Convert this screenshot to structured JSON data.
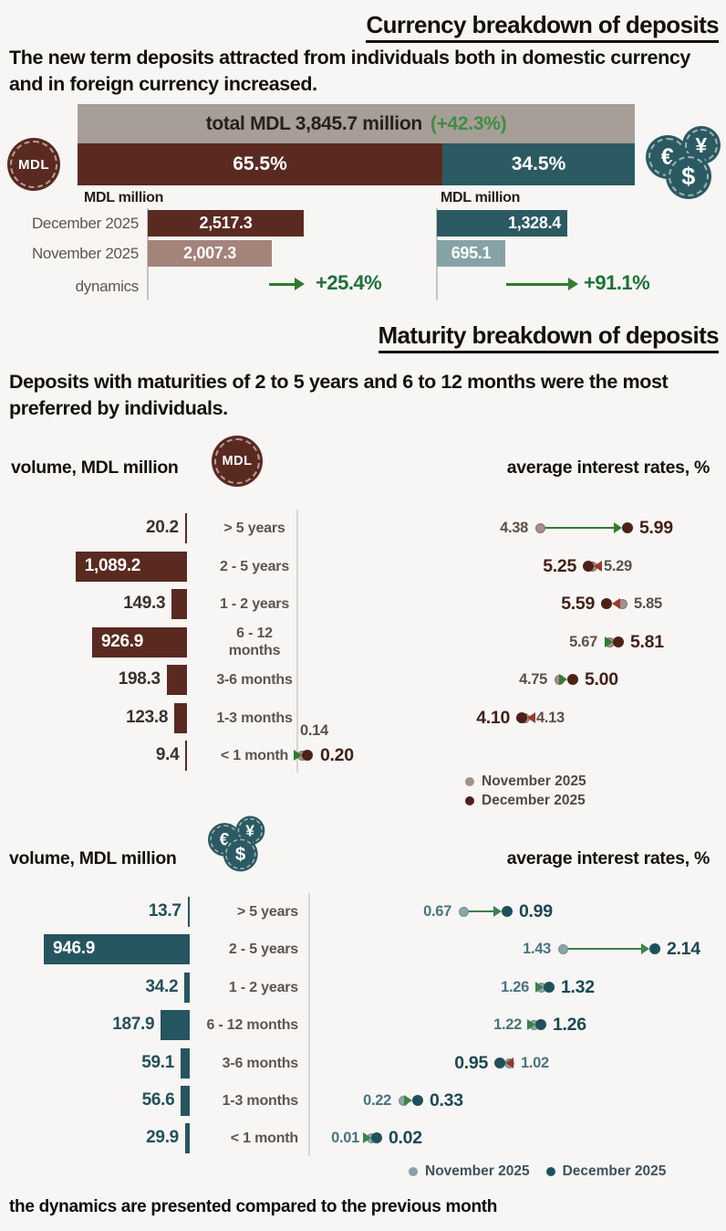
{
  "currency_section": {
    "title": "Currency breakdown of deposits",
    "intro": "The new term deposits attracted from individuals both in domestic currency and in foreign currency increased.",
    "total_label": "total MDL 3,845.7 million",
    "total_change": "(+42.3%)",
    "mdl_share": "65.5%",
    "fx_share": "34.5%",
    "mdl_coin": "MDL",
    "fx_symbols": {
      "eur": "€",
      "yen": "¥",
      "usd": "$"
    }
  },
  "maturity_section": {
    "title": "Maturity breakdown of deposits",
    "intro": "Deposits with maturities of 2 to 5 years and 6 to 12 months were the most preferred by individuals.",
    "mdl_volume_header": "volume, MDL million",
    "mdl_rates_header": "average interest rates, %",
    "fx_volume_header": "volume, MDL million",
    "fx_rates_header": "average interest rates, %"
  },
  "legend": {
    "november": "November 2025",
    "december": "December 2025"
  },
  "footer_note": "the dynamics are presented compared to the previous month",
  "colors": {
    "maroon": "#5a2a21",
    "maroon_light": "#a4837b",
    "teal": "#2b5a62",
    "teal_light": "#85a3a6",
    "gray_bar": "#a69e97",
    "green_arrow": "#2e7d32",
    "green_text": "#1e7038",
    "red_arrow": "#9c3a28"
  },
  "chart_data": [
    {
      "id": "currency-mdl-mini",
      "type": "bar",
      "title": "MDL million",
      "categories": [
        "December 2025",
        "November 2025"
      ],
      "values": [
        2517.3,
        2007.3
      ],
      "value_labels": [
        "2,517.3",
        "2,007.3"
      ],
      "dynamics_label": "dynamics",
      "dynamics": "+25.4%"
    },
    {
      "id": "currency-fx-mini",
      "type": "bar",
      "title": "MDL million",
      "categories": [
        "December 2025",
        "November 2025"
      ],
      "values": [
        1328.4,
        695.1
      ],
      "value_labels": [
        "1,328.4",
        "695.1"
      ],
      "dynamics_label": "",
      "dynamics": "+91.1%"
    },
    {
      "id": "maturity-mdl",
      "type": "bar+dumbbell",
      "currency": "MDL",
      "title": "volume, MDL million",
      "rates_title": "average interest rates, %",
      "categories": [
        "> 5 years",
        "2 - 5 years",
        "1 - 2 years",
        "6 - 12\nmonths",
        "3-6 months",
        "1-3 months",
        "< 1 month"
      ],
      "volumes": [
        20.2,
        1089.2,
        149.3,
        926.9,
        198.3,
        123.8,
        9.4
      ],
      "volume_labels": [
        "20.2",
        "1,089.2",
        "149.3",
        "926.9",
        "198.3",
        "123.8",
        "9.4"
      ],
      "rates_november": [
        4.38,
        5.29,
        5.85,
        5.67,
        4.75,
        4.13,
        0.14
      ],
      "rates_december": [
        5.99,
        5.25,
        5.59,
        5.81,
        5.0,
        4.1,
        0.2
      ],
      "rate_labels_november": [
        "4.38",
        "5.29",
        "5.85",
        "5.67",
        "4.75",
        "4.13",
        "0.14"
      ],
      "rate_labels_december": [
        "5.99",
        "5.25",
        "5.59",
        "5.81",
        "5.00",
        "4.10",
        "0.20"
      ],
      "legend": [
        "November 2025",
        "December 2025"
      ],
      "legend_position": "below-stacked"
    },
    {
      "id": "maturity-fx",
      "type": "bar+dumbbell",
      "currency": "foreign currency",
      "title": "volume, MDL million",
      "rates_title": "average interest rates, %",
      "categories": [
        "> 5 years",
        "2 - 5 years",
        "1 - 2 years",
        "6 - 12 months",
        "3-6 months",
        "1-3 months",
        "< 1 month"
      ],
      "volumes": [
        13.7,
        946.9,
        34.2,
        187.9,
        59.1,
        56.6,
        29.9
      ],
      "volume_labels": [
        "13.7",
        "946.9",
        "34.2",
        "187.9",
        "59.1",
        "56.6",
        "29.9"
      ],
      "rates_november": [
        0.67,
        1.43,
        1.26,
        1.22,
        1.02,
        0.22,
        0.01
      ],
      "rates_december": [
        0.99,
        2.14,
        1.32,
        1.26,
        0.95,
        0.33,
        0.02
      ],
      "rate_labels_november": [
        "0.67",
        "1.43",
        "1.26",
        "1.22",
        "1.02",
        "0.22",
        "0.01"
      ],
      "rate_labels_december": [
        "0.99",
        "2.14",
        "1.32",
        "1.26",
        "0.95",
        "0.33",
        "0.02"
      ],
      "legend": [
        "November 2025",
        "December 2025"
      ],
      "legend_position": "below-inline"
    }
  ]
}
